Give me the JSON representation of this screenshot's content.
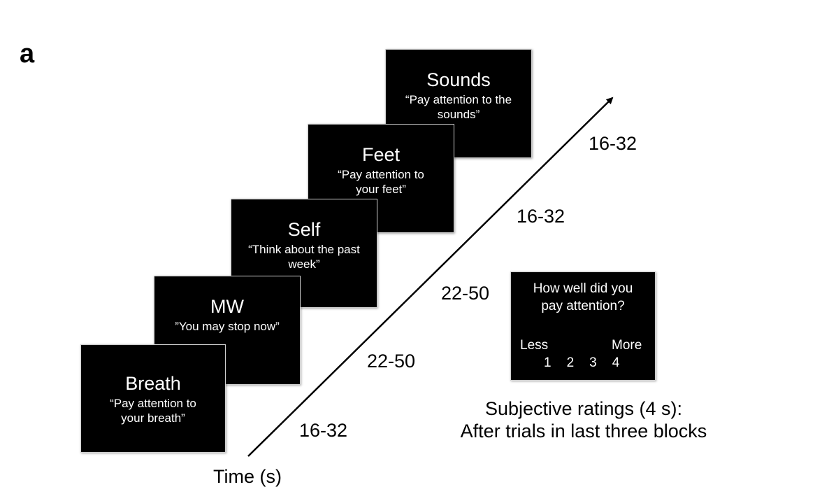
{
  "panel_label": "a",
  "blocks": [
    {
      "title": "Breath",
      "instruction": "“Pay attention to your breath”"
    },
    {
      "title": "MW",
      "instruction": "”You may stop now”"
    },
    {
      "title": "Self",
      "instruction": "“Think about the past week”"
    },
    {
      "title": "Feet",
      "instruction": "“Pay attention to your feet”"
    },
    {
      "title": "Sounds",
      "instruction": "“Pay attention to the sounds”"
    }
  ],
  "durations": [
    "16-32",
    "22-50",
    "22-50",
    "16-32",
    "16-32"
  ],
  "time_axis_label": "Time (s)",
  "rating_screen": {
    "question": "How well did you pay attention?",
    "less_label": "Less",
    "more_label": "More",
    "scale": [
      "1",
      "2",
      "3",
      "4"
    ]
  },
  "rating_caption_line1": "Subjective ratings (4 s):",
  "rating_caption_line2": "After trials in last three blocks"
}
